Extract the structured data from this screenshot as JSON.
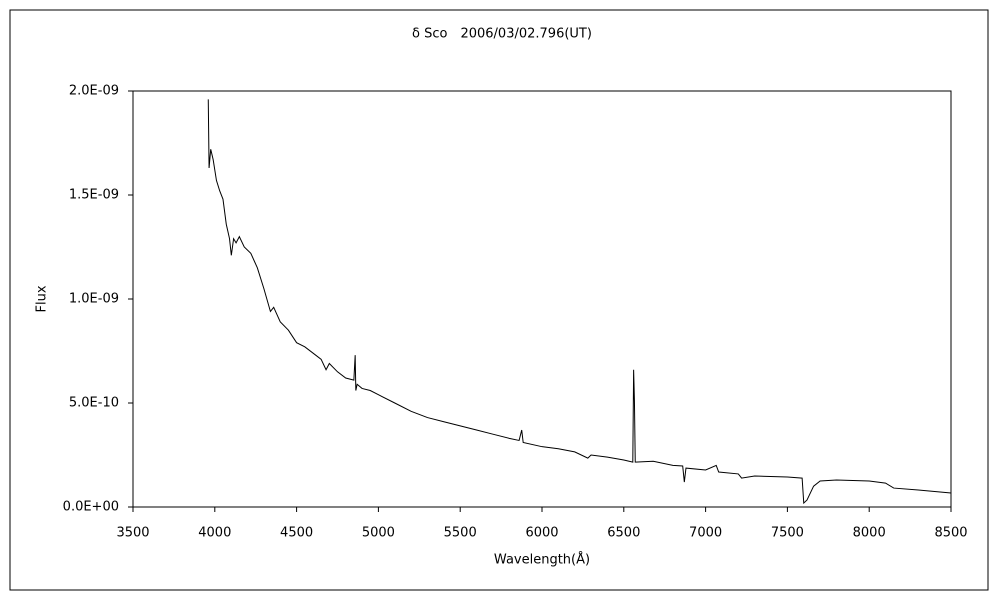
{
  "chart_data": {
    "type": "line",
    "title": "δ Sco　2006/03/02.796(UT)",
    "x_label": "Wavelength(Å)",
    "y_label": "Flux",
    "grid": false,
    "xlim": [
      3500,
      8500
    ],
    "xticks": [
      3500,
      4000,
      4500,
      5000,
      5500,
      6000,
      6500,
      7000,
      7500,
      8000,
      8500
    ],
    "ylim": [
      0,
      2e-09
    ],
    "yticks": [
      {
        "value": 0,
        "label": "0.0E+00"
      },
      {
        "value": 5e-10,
        "label": "5.0E-10"
      },
      {
        "value": 1e-09,
        "label": "1.0E-09"
      },
      {
        "value": 1.5e-09,
        "label": "1.5E-09"
      },
      {
        "value": 2e-09,
        "label": "2.0E-09"
      }
    ],
    "x": [
      3960,
      3965,
      3975,
      3990,
      4010,
      4030,
      4050,
      4070,
      4090,
      4101,
      4115,
      4130,
      4150,
      4180,
      4220,
      4260,
      4300,
      4340,
      4360,
      4400,
      4450,
      4500,
      4550,
      4600,
      4650,
      4680,
      4700,
      4750,
      4800,
      4850,
      4858,
      4862,
      4870,
      4900,
      4950,
      5000,
      5100,
      5200,
      5300,
      5400,
      5500,
      5600,
      5700,
      5800,
      5860,
      5876,
      5885,
      6000,
      6100,
      6200,
      6280,
      6300,
      6400,
      6500,
      6555,
      6560,
      6565,
      6570,
      6680,
      6800,
      6860,
      6870,
      6880,
      7000,
      7065,
      7080,
      7200,
      7220,
      7300,
      7500,
      7590,
      7600,
      7620,
      7660,
      7700,
      7800,
      8000,
      8100,
      8150,
      8300,
      8500
    ],
    "series": [
      {
        "name": "Flux",
        "color": "#000000",
        "values": [
          1.96e-09,
          1.63e-09,
          1.72e-09,
          1.67e-09,
          1.57e-09,
          1.52e-09,
          1.48e-09,
          1.36e-09,
          1.29e-09,
          1.21e-09,
          1.29e-09,
          1.27e-09,
          1.3e-09,
          1.25e-09,
          1.22e-09,
          1.15e-09,
          1.05e-09,
          9.4e-10,
          9.6e-10,
          8.9e-10,
          8.5e-10,
          7.9e-10,
          7.7e-10,
          7.4e-10,
          7.1e-10,
          6.6e-10,
          6.9e-10,
          6.5e-10,
          6.2e-10,
          6.1e-10,
          7.3e-10,
          5.6e-10,
          5.9e-10,
          5.7e-10,
          5.6e-10,
          5.4e-10,
          5e-10,
          4.6e-10,
          4.3e-10,
          4.1e-10,
          3.9e-10,
          3.7e-10,
          3.5e-10,
          3.3e-10,
          3.2e-10,
          3.7e-10,
          3.1e-10,
          2.9e-10,
          2.8e-10,
          2.65e-10,
          2.35e-10,
          2.5e-10,
          2.4e-10,
          2.26e-10,
          2.16e-10,
          6.6e-10,
          5.1e-10,
          2.16e-10,
          2.2e-10,
          2e-10,
          1.97e-10,
          1.2e-10,
          1.87e-10,
          1.78e-10,
          2e-10,
          1.68e-10,
          1.59e-10,
          1.39e-10,
          1.49e-10,
          1.44e-10,
          1.39e-10,
          1.9e-11,
          3.4e-11,
          1e-10,
          1.25e-10,
          1.3e-10,
          1.25e-10,
          1.15e-10,
          9.1e-11,
          8.2e-11,
          6.7e-11
        ]
      }
    ]
  }
}
